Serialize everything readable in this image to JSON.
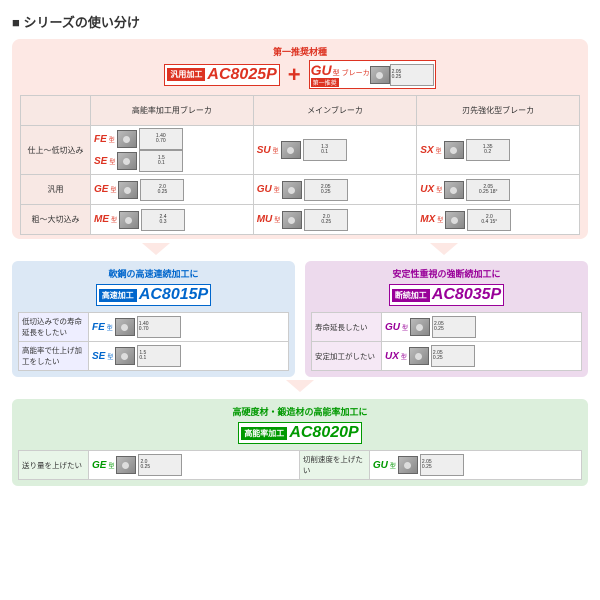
{
  "title": "シリーズの使い分け",
  "top": {
    "rec_label": "第一推奨材種",
    "tag": "汎用加工",
    "code": "AC8025P",
    "plus": "+",
    "bk_code": "GU",
    "bk_sub": "型 ブレーカ",
    "bk_tag": "第一推奨",
    "bk_dia": {
      "d1": "0.25",
      "d2": "2.05"
    }
  },
  "matrix": {
    "col_headers": [
      "高能率加工用ブレーカ",
      "メインブレーカ",
      "刃先強化型ブレーカ"
    ],
    "rows": [
      {
        "h": "仕上～低切込み",
        "cells": [
          [
            {
              "c": "FE",
              "s": "型",
              "d1": "0.70",
              "d2": "1.40"
            },
            {
              "c": "SE",
              "s": "型",
              "d1": "0.1",
              "d2": "1.5"
            }
          ],
          [
            {
              "c": "SU",
              "s": "型",
              "d1": "0.1",
              "d2": "1.3"
            }
          ],
          [
            {
              "c": "SX",
              "s": "型",
              "d1": "0.2",
              "d2": "1.35"
            }
          ]
        ]
      },
      {
        "h": "汎用",
        "cells": [
          [
            {
              "c": "GE",
              "s": "型",
              "d1": "0.25",
              "d2": "2.0"
            }
          ],
          [
            {
              "c": "GU",
              "s": "型",
              "d1": "0.25",
              "d2": "2.05"
            }
          ],
          [
            {
              "c": "UX",
              "s": "型",
              "d1": "0.25",
              "d2": "2.05",
              "a": "18°"
            }
          ]
        ]
      },
      {
        "h": "粗～大切込み",
        "cells": [
          [
            {
              "c": "ME",
              "s": "型",
              "d1": "0.3",
              "d2": "2.4"
            }
          ],
          [
            {
              "c": "MU",
              "s": "型",
              "d1": "0.25",
              "d2": "2.0"
            }
          ],
          [
            {
              "c": "MX",
              "s": "型",
              "d1": "0.4",
              "d2": "2.0",
              "a": "15°"
            }
          ]
        ]
      }
    ]
  },
  "blue": {
    "title": "軟鋼の高速連続加工に",
    "tag": "高速加工",
    "code": "AC8015P",
    "rows": [
      {
        "h": "低切込みでの寿命延長をしたい",
        "c": "FE",
        "s": "型",
        "d1": "0.70",
        "d2": "1.40"
      },
      {
        "h": "高能率で仕上げ加工をしたい",
        "c": "SE",
        "s": "型",
        "d1": "0.1",
        "d2": "1.5"
      }
    ]
  },
  "purple": {
    "title": "安定性重視の強断続加工に",
    "tag": "断続加工",
    "code": "AC8035P",
    "rows": [
      {
        "h": "寿命延長したい",
        "c": "GU",
        "s": "型",
        "d1": "0.25",
        "d2": "2.05"
      },
      {
        "h": "安定加工がしたい",
        "c": "UX",
        "s": "型",
        "d1": "0.25",
        "d2": "2.05"
      }
    ]
  },
  "green": {
    "title": "高硬度材・鍛造材の高能率加工に",
    "tag": "高能率加工",
    "code": "AC8020P",
    "rows": [
      {
        "h": "送り量を上げたい",
        "c": "GE",
        "s": "型",
        "d1": "0.25",
        "d2": "2.0"
      },
      {
        "h": "切削速度を上げたい",
        "c": "GU",
        "s": "型",
        "d1": "0.25",
        "d2": "2.05"
      }
    ]
  },
  "colors": {
    "red": "#d32",
    "blue": "#06c",
    "purple": "#909",
    "green": "#090",
    "pink_bg": "#fde8e4",
    "blue_bg": "#dce8f5",
    "purple_bg": "#eddaed",
    "green_bg": "#dcefdc"
  }
}
